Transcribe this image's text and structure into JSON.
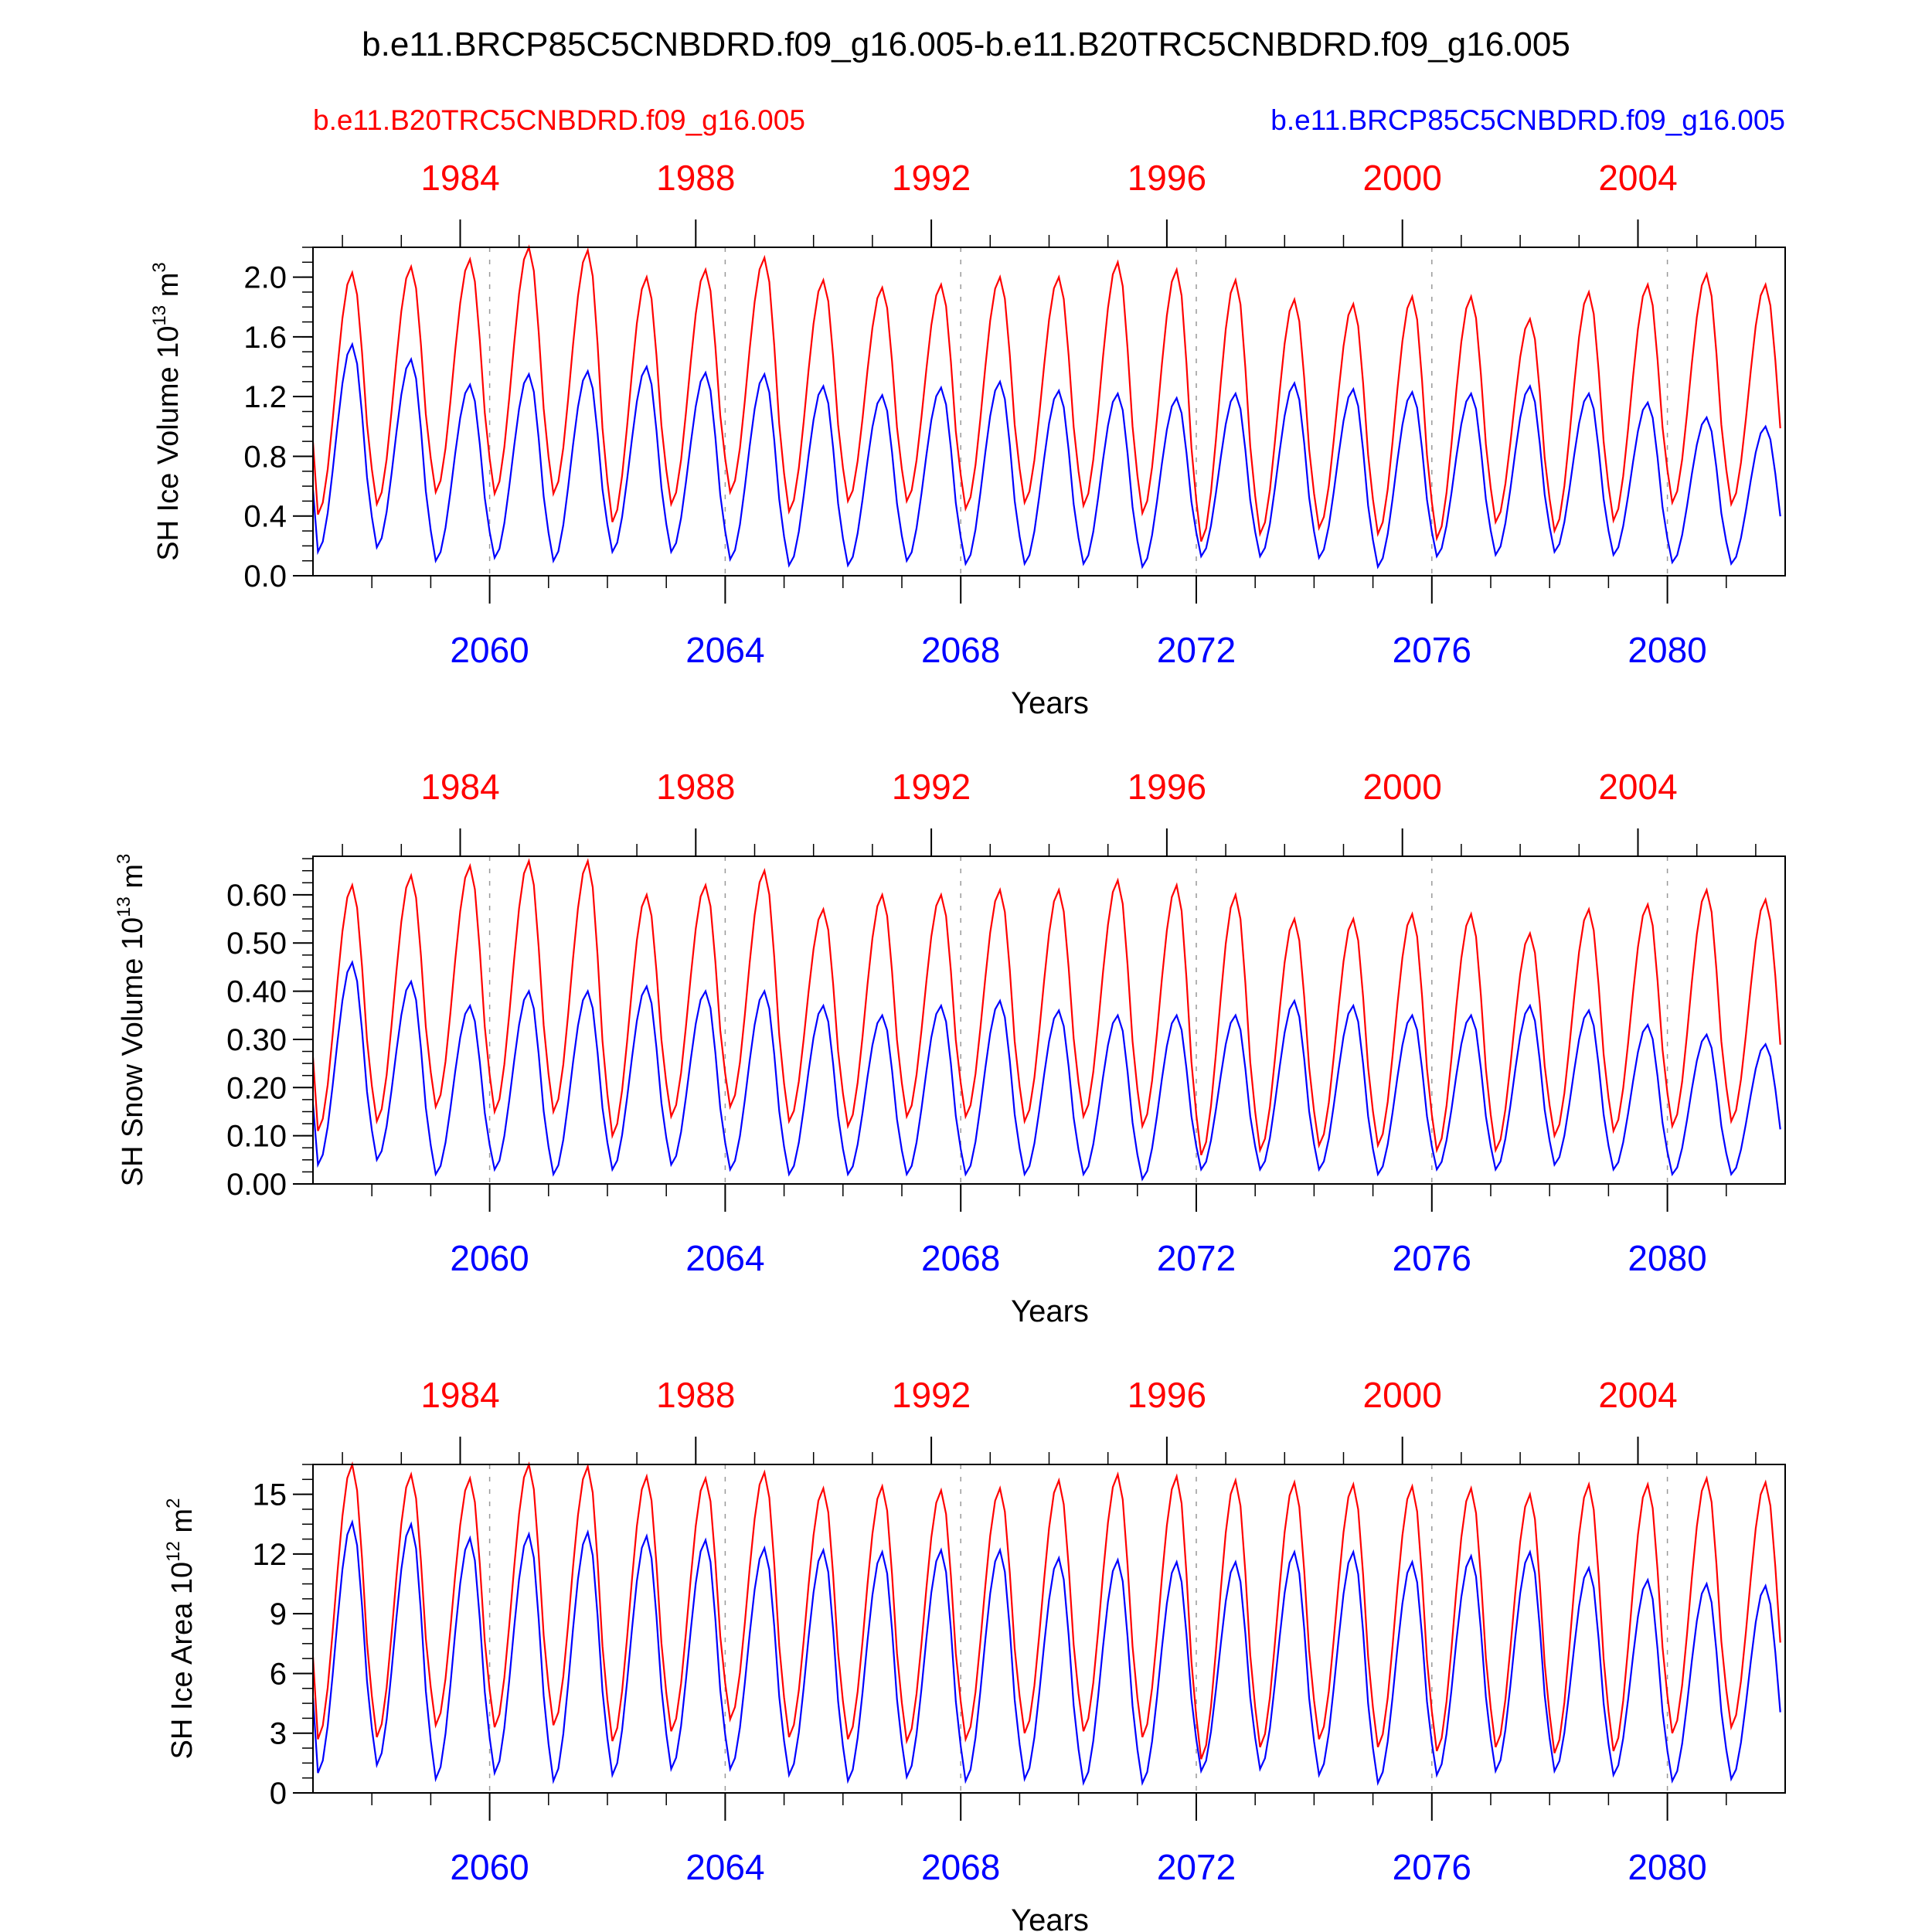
{
  "title": "b.e11.BRCP85C5CNBDRD.f09_g16.005-b.e11.B20TRC5CNBDRD.f09_g16.005",
  "colors": {
    "historical": "#ff0000",
    "future": "#0000ff",
    "axis": "#000000",
    "frame_grid": "#999999"
  },
  "legend": {
    "left": "b.e11.B20TRC5CNBDRD.f09_g16.005",
    "right": "b.e11.BRCP85C5CNBDRD.f09_g16.005"
  },
  "chart_data": [
    {
      "type": "line",
      "ylabel": "SH Ice Volume 10",
      "ylabel_exp": "13",
      "ylabel_unit": "m",
      "ylabel_unit_exp": "3",
      "xlabel": "Years",
      "ylim": [
        0,
        2.2
      ],
      "yticks": [
        "0.0",
        "0.4",
        "0.8",
        "1.2",
        "1.6",
        "2.0"
      ],
      "ytick_values": [
        0,
        0.4,
        0.8,
        1.2,
        1.6,
        2.0
      ],
      "top_xticks": [
        "1984",
        "1988",
        "1992",
        "1996",
        "2000",
        "2004"
      ],
      "bottom_xticks": [
        "2060",
        "2064",
        "2068",
        "2072",
        "2076",
        "2080"
      ],
      "series": [
        {
          "name": "b.e11.B20TRC5CNBDRD.f09_g16.005",
          "minima": [
            0.41,
            0.48,
            0.56,
            0.55,
            0.55,
            0.36,
            0.48,
            0.56,
            0.43,
            0.5,
            0.5,
            0.45,
            0.49,
            0.47,
            0.42,
            0.23,
            0.28,
            0.32,
            0.28,
            0.25,
            0.36,
            0.3,
            0.37,
            0.49,
            0.48
          ],
          "maxima": [
            2.03,
            2.07,
            2.12,
            2.2,
            2.18,
            2.0,
            2.05,
            2.13,
            1.98,
            1.93,
            1.95,
            2.0,
            2.0,
            2.1,
            2.05,
            1.98,
            1.85,
            1.82,
            1.87,
            1.87,
            1.72,
            1.9,
            1.95,
            2.02,
            1.95
          ]
        },
        {
          "name": "b.e11.BRCP85C5CNBDRD.f09_g16.005",
          "minima": [
            0.16,
            0.19,
            0.1,
            0.12,
            0.1,
            0.16,
            0.16,
            0.11,
            0.07,
            0.07,
            0.1,
            0.08,
            0.08,
            0.08,
            0.06,
            0.13,
            0.13,
            0.12,
            0.06,
            0.13,
            0.14,
            0.16,
            0.14,
            0.09,
            0.08
          ],
          "maxima": [
            1.55,
            1.45,
            1.28,
            1.35,
            1.37,
            1.4,
            1.36,
            1.35,
            1.27,
            1.21,
            1.26,
            1.3,
            1.24,
            1.22,
            1.19,
            1.22,
            1.29,
            1.25,
            1.23,
            1.22,
            1.27,
            1.22,
            1.16,
            1.06,
            1.0
          ]
        }
      ]
    },
    {
      "type": "line",
      "ylabel": "SH Snow Volume 10",
      "ylabel_exp": "13",
      "ylabel_unit": "m",
      "ylabel_unit_exp": "3",
      "xlabel": "Years",
      "ylim": [
        0,
        0.68
      ],
      "yticks": [
        "0.00",
        "0.10",
        "0.20",
        "0.30",
        "0.40",
        "0.50",
        "0.60"
      ],
      "ytick_values": [
        0,
        0.1,
        0.2,
        0.3,
        0.4,
        0.5,
        0.6
      ],
      "top_xticks": [
        "1984",
        "1988",
        "1992",
        "1996",
        "2000",
        "2004"
      ],
      "bottom_xticks": [
        "2060",
        "2064",
        "2068",
        "2072",
        "2076",
        "2080"
      ],
      "series": [
        {
          "name": "b.e11.B20TRC5CNBDRD.f09_g16.005",
          "minima": [
            0.11,
            0.13,
            0.16,
            0.15,
            0.15,
            0.1,
            0.14,
            0.16,
            0.13,
            0.12,
            0.14,
            0.14,
            0.13,
            0.14,
            0.12,
            0.06,
            0.07,
            0.08,
            0.08,
            0.07,
            0.07,
            0.1,
            0.11,
            0.12,
            0.13
          ],
          "maxima": [
            0.62,
            0.64,
            0.66,
            0.67,
            0.67,
            0.6,
            0.62,
            0.65,
            0.57,
            0.6,
            0.6,
            0.61,
            0.61,
            0.63,
            0.62,
            0.6,
            0.55,
            0.55,
            0.56,
            0.56,
            0.52,
            0.57,
            0.58,
            0.61,
            0.59
          ]
        },
        {
          "name": "b.e11.BRCP85C5CNBDRD.f09_g16.005",
          "minima": [
            0.04,
            0.05,
            0.02,
            0.03,
            0.02,
            0.03,
            0.04,
            0.03,
            0.02,
            0.02,
            0.02,
            0.02,
            0.02,
            0.02,
            0.01,
            0.03,
            0.03,
            0.03,
            0.02,
            0.03,
            0.03,
            0.04,
            0.03,
            0.02,
            0.02
          ],
          "maxima": [
            0.46,
            0.42,
            0.37,
            0.4,
            0.4,
            0.41,
            0.4,
            0.4,
            0.37,
            0.35,
            0.37,
            0.38,
            0.36,
            0.35,
            0.35,
            0.35,
            0.38,
            0.37,
            0.35,
            0.35,
            0.37,
            0.36,
            0.33,
            0.31,
            0.29
          ]
        }
      ]
    },
    {
      "type": "line",
      "ylabel": "SH Ice Area 10",
      "ylabel_exp": "12",
      "ylabel_unit": "m",
      "ylabel_unit_exp": "2",
      "xlabel": "Years",
      "ylim": [
        0,
        16.5
      ],
      "yticks": [
        "0",
        "3",
        "6",
        "9",
        "12",
        "15"
      ],
      "ytick_values": [
        0,
        3,
        6,
        9,
        12,
        15
      ],
      "top_xticks": [
        "1984",
        "1988",
        "1992",
        "1996",
        "2000",
        "2004"
      ],
      "bottom_xticks": [
        "2060",
        "2064",
        "2068",
        "2072",
        "2076",
        "2080"
      ],
      "series": [
        {
          "name": "b.e11.B20TRC5CNBDRD.f09_g16.005",
          "minima": [
            2.7,
            2.8,
            3.4,
            3.3,
            3.4,
            2.6,
            3.1,
            3.7,
            2.8,
            2.7,
            2.6,
            2.7,
            3.0,
            3.1,
            2.8,
            1.7,
            2.3,
            2.7,
            2.3,
            2.1,
            2.3,
            2.0,
            2.1,
            3.0,
            3.3
          ],
          "maxima": [
            16.5,
            16.0,
            15.8,
            16.5,
            16.4,
            15.9,
            15.8,
            16.1,
            15.3,
            15.4,
            15.2,
            15.3,
            15.7,
            16.0,
            15.9,
            15.7,
            15.6,
            15.5,
            15.4,
            15.3,
            15.0,
            15.5,
            15.5,
            15.8,
            15.6
          ]
        },
        {
          "name": "b.e11.BRCP85C5CNBDRD.f09_g16.005",
          "minima": [
            1.0,
            1.4,
            0.7,
            1.0,
            0.6,
            0.9,
            1.2,
            1.2,
            0.9,
            0.6,
            0.8,
            0.6,
            0.7,
            0.5,
            0.5,
            1.1,
            1.2,
            0.9,
            0.5,
            0.9,
            1.1,
            1.1,
            0.9,
            0.6,
            0.7
          ],
          "maxima": [
            13.6,
            13.5,
            12.8,
            13.0,
            13.1,
            12.9,
            12.7,
            12.3,
            12.2,
            12.1,
            12.2,
            12.2,
            11.8,
            11.7,
            11.6,
            11.6,
            12.1,
            12.1,
            11.6,
            11.9,
            12.1,
            11.3,
            10.7,
            10.5,
            10.4
          ]
        }
      ]
    }
  ]
}
